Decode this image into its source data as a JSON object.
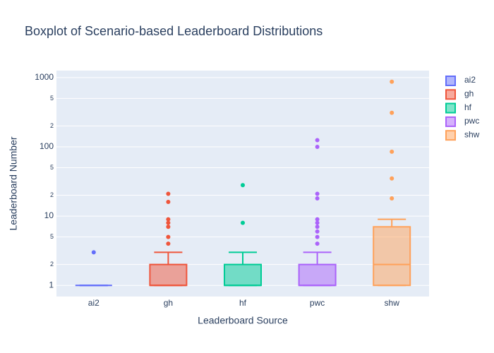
{
  "chart_data": {
    "type": "box",
    "title": "Boxplot of Scenario-based Leaderboard Distributions",
    "x_label": "Leaderboard Source",
    "y_label": "Leaderboard Number",
    "categories": [
      "ai2",
      "gh",
      "hf",
      "pwc",
      "shw"
    ],
    "yscale": "log",
    "ylim": [
      0.69,
      1260
    ],
    "yticks": [
      1,
      {
        "value": 2,
        "label": "2"
      },
      {
        "value": 5,
        "label": "5"
      },
      10,
      {
        "value": 20,
        "label": "2"
      },
      {
        "value": 50,
        "label": "5"
      },
      100,
      {
        "value": 200,
        "label": "2"
      },
      {
        "value": 500,
        "label": "5"
      },
      1000
    ],
    "grid": true,
    "legend": "right",
    "series": [
      {
        "name": "ai2",
        "color": "#636efa",
        "lowerfence": 1,
        "q1": 1,
        "median": 1,
        "q3": 1,
        "upperfence": 1,
        "outliers": [
          3
        ]
      },
      {
        "name": "gh",
        "color": "#ef553b",
        "lowerfence": 1,
        "q1": 1,
        "median": 1,
        "q3": 2,
        "upperfence": 3,
        "outliers": [
          4,
          5,
          7,
          8,
          9,
          16,
          21
        ]
      },
      {
        "name": "hf",
        "color": "#00cc96",
        "lowerfence": 1,
        "q1": 1,
        "median": 1,
        "q3": 2,
        "upperfence": 3,
        "outliers": [
          8,
          28
        ]
      },
      {
        "name": "pwc",
        "color": "#ab63fa",
        "lowerfence": 1,
        "q1": 1,
        "median": 1,
        "q3": 2,
        "upperfence": 3,
        "outliers": [
          4,
          5,
          6,
          7,
          8,
          9,
          18,
          21,
          100,
          125
        ]
      },
      {
        "name": "shw",
        "color": "#ffa15a",
        "lowerfence": 1,
        "q1": 1,
        "median": 2,
        "q3": 7,
        "upperfence": 9,
        "outliers": [
          18,
          35,
          85,
          310,
          870
        ]
      }
    ]
  }
}
